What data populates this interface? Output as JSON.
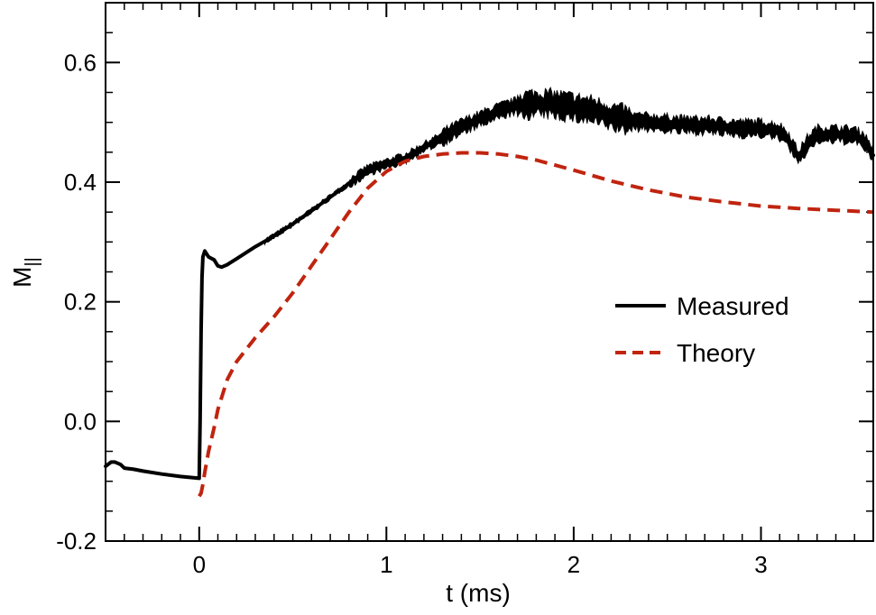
{
  "chart_data": {
    "type": "line",
    "xlabel": "t (ms)",
    "ylabel": "M",
    "ylabel_sub": "||",
    "xlim": [
      -0.5,
      3.6
    ],
    "ylim": [
      -0.2,
      0.7
    ],
    "xticks": [
      0,
      1,
      2,
      3
    ],
    "xtick_labels": [
      "0",
      "1",
      "2",
      "3"
    ],
    "yticks": [
      -0.2,
      0.0,
      0.2,
      0.4,
      0.6
    ],
    "ytick_labels": [
      "-0.2",
      "0.0",
      "0.2",
      "0.4",
      "0.6"
    ],
    "x_minor_step": 0.1,
    "y_minor_step": 0.05,
    "grid": false,
    "legend_position": "center-right",
    "series": [
      {
        "name": "Measured",
        "color": "#000000",
        "style": "solid",
        "noise": true,
        "x": [
          -0.5,
          -0.47,
          -0.45,
          -0.42,
          -0.4,
          -0.35,
          -0.3,
          -0.2,
          -0.1,
          0.0,
          0.005,
          0.01,
          0.015,
          0.02,
          0.03,
          0.05,
          0.08,
          0.1,
          0.12,
          0.15,
          0.2,
          0.3,
          0.4,
          0.5,
          0.6,
          0.7,
          0.8,
          0.9,
          1.0,
          1.1,
          1.2,
          1.3,
          1.4,
          1.5,
          1.6,
          1.7,
          1.8,
          1.9,
          2.0,
          2.1,
          2.2,
          2.3,
          2.4,
          2.5,
          2.6,
          2.7,
          2.8,
          2.9,
          3.0,
          3.1,
          3.15,
          3.2,
          3.25,
          3.3,
          3.4,
          3.5,
          3.55,
          3.6
        ],
        "y": [
          -0.075,
          -0.068,
          -0.068,
          -0.072,
          -0.078,
          -0.08,
          -0.083,
          -0.088,
          -0.092,
          -0.095,
          0.0,
          0.15,
          0.24,
          0.275,
          0.285,
          0.275,
          0.27,
          0.26,
          0.258,
          0.262,
          0.272,
          0.292,
          0.31,
          0.33,
          0.352,
          0.375,
          0.398,
          0.42,
          0.43,
          0.44,
          0.458,
          0.475,
          0.492,
          0.505,
          0.518,
          0.528,
          0.532,
          0.53,
          0.525,
          0.52,
          0.51,
          0.502,
          0.5,
          0.498,
          0.495,
          0.495,
          0.492,
          0.49,
          0.49,
          0.485,
          0.47,
          0.44,
          0.465,
          0.48,
          0.48,
          0.478,
          0.47,
          0.445
        ]
      },
      {
        "name": "Theory",
        "color": "#c0240f",
        "style": "dashed",
        "noise": false,
        "x": [
          0.0,
          0.01,
          0.02,
          0.03,
          0.05,
          0.08,
          0.1,
          0.15,
          0.2,
          0.3,
          0.4,
          0.5,
          0.6,
          0.7,
          0.8,
          0.9,
          1.0,
          1.1,
          1.2,
          1.3,
          1.4,
          1.5,
          1.6,
          1.7,
          1.8,
          2.0,
          2.2,
          2.4,
          2.6,
          2.8,
          3.0,
          3.2,
          3.4,
          3.6
        ],
        "y": [
          -0.125,
          -0.12,
          -0.105,
          -0.085,
          -0.05,
          -0.01,
          0.02,
          0.07,
          0.1,
          0.14,
          0.175,
          0.215,
          0.26,
          0.305,
          0.35,
          0.39,
          0.418,
          0.435,
          0.443,
          0.447,
          0.449,
          0.449,
          0.447,
          0.443,
          0.437,
          0.42,
          0.402,
          0.387,
          0.375,
          0.367,
          0.36,
          0.356,
          0.353,
          0.35
        ]
      }
    ]
  }
}
